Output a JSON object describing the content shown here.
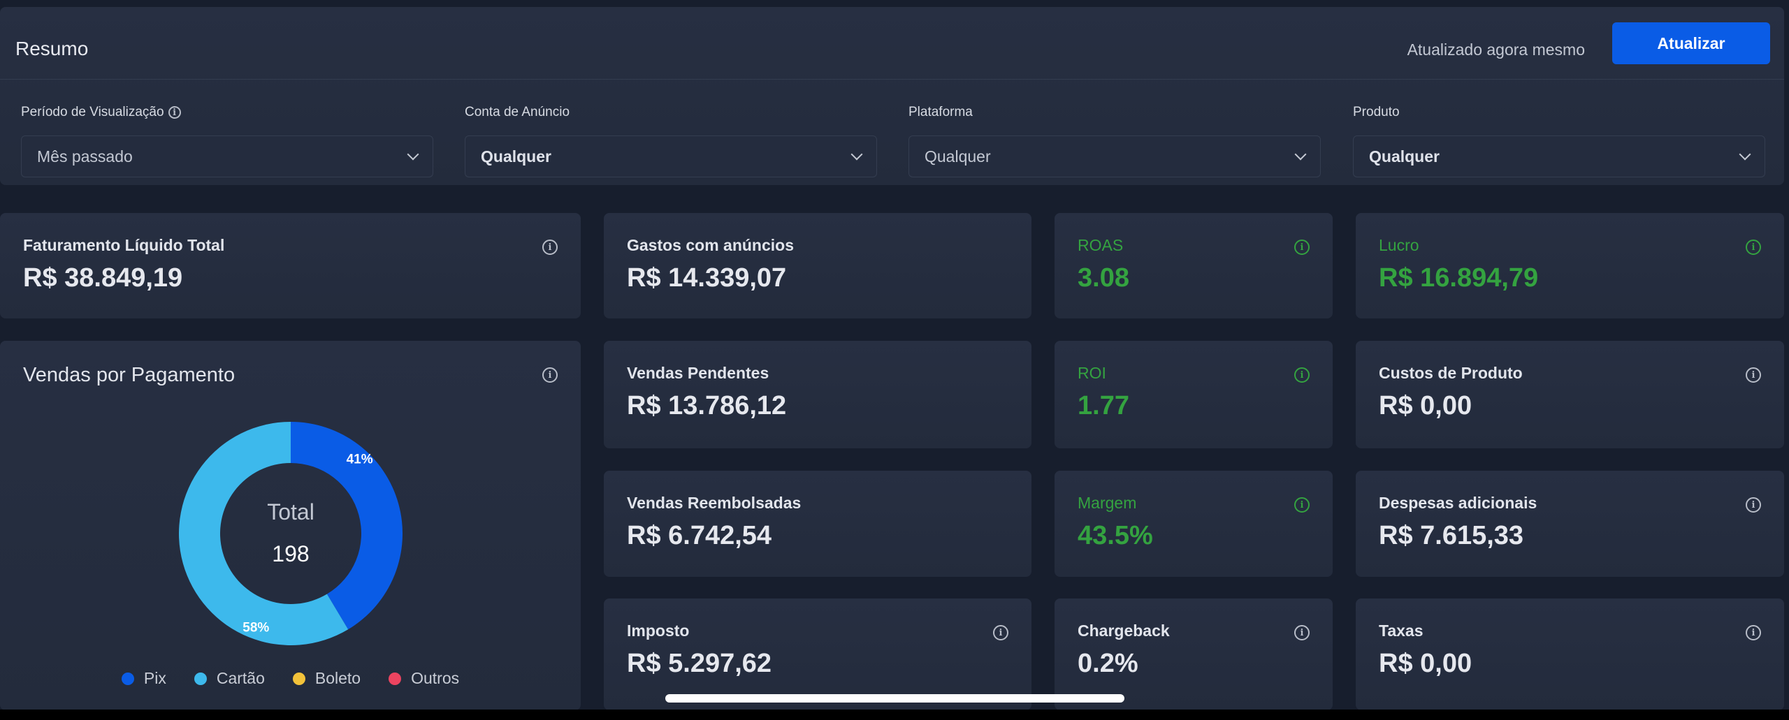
{
  "header": {
    "title": "Resumo",
    "updated": "Atualizado agora mesmo",
    "refresh_label": "Atualizar",
    "accent": "#0a5ce6"
  },
  "filters": [
    {
      "label": "Período de Visualização",
      "value": "Mês passado",
      "info": true
    },
    {
      "label": "Conta de Anúncio",
      "value": "Qualquer"
    },
    {
      "label": "Plataforma",
      "value": "Qualquer"
    },
    {
      "label": "Produto",
      "value": "Qualquer"
    }
  ],
  "cards": {
    "faturamento": {
      "label": "Faturamento Líquido Total",
      "value": "R$ 38.849,19"
    },
    "gastos": {
      "label": "Gastos com anúncios",
      "value": "R$ 14.339,07"
    },
    "roas": {
      "label": "ROAS",
      "value": "3.08"
    },
    "lucro": {
      "label": "Lucro",
      "value": "R$ 16.894,79"
    },
    "pendentes": {
      "label": "Vendas Pendentes",
      "value": "R$ 13.786,12"
    },
    "roi": {
      "label": "ROI",
      "value": "1.77"
    },
    "custos": {
      "label": "Custos de Produto",
      "value": "R$ 0,00"
    },
    "reembolsadas": {
      "label": "Vendas Reembolsadas",
      "value": "R$ 6.742,54"
    },
    "margem": {
      "label": "Margem",
      "value": "43.5%"
    },
    "despesas": {
      "label": "Despesas adicionais",
      "value": "R$ 7.615,33"
    },
    "imposto": {
      "label": "Imposto",
      "value": "R$ 5.297,62"
    },
    "chargeback": {
      "label": "Chargeback",
      "value": "0.2%"
    },
    "taxas": {
      "label": "Taxas",
      "value": "R$ 0,00"
    }
  },
  "positive_color": "#34a340",
  "chart_data": {
    "type": "pie",
    "title": "Vendas por Pagamento",
    "center_label": "Total",
    "center_value": "198",
    "categories": [
      "Pix",
      "Cartão",
      "Boleto",
      "Outros"
    ],
    "values": [
      41,
      58,
      0,
      0
    ],
    "data_labels": [
      "41%",
      "58%",
      "",
      ""
    ],
    "colors": [
      "#0a5ce6",
      "#3db9ec",
      "#f2c23a",
      "#ec4460"
    ],
    "legend": "bottom"
  }
}
